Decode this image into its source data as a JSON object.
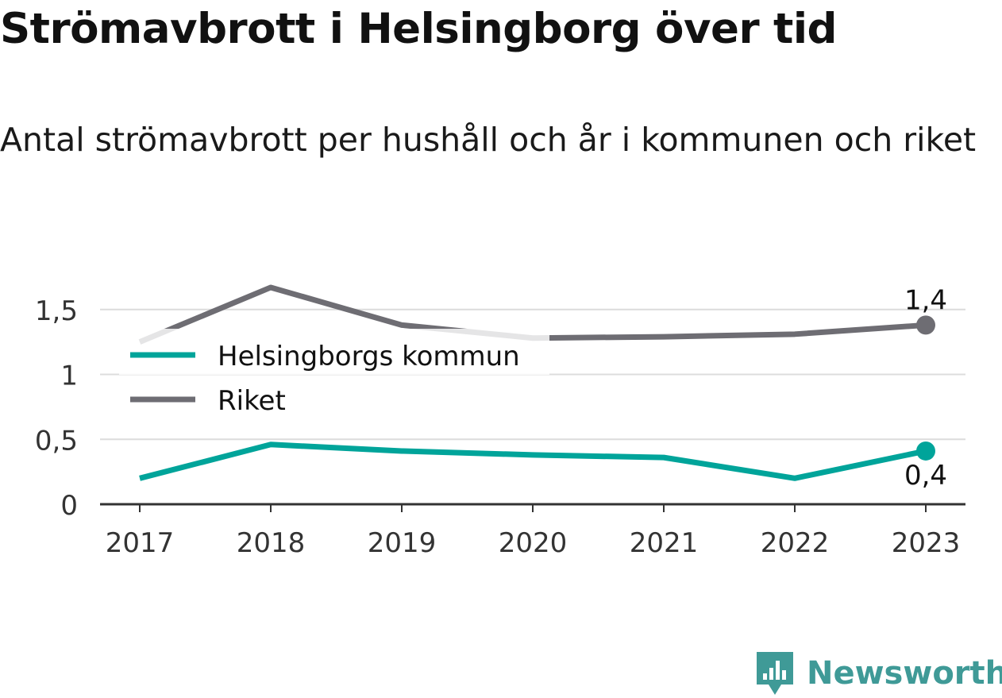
{
  "title": "Strömavbrott i Helsingborg över tid",
  "subtitle": "Antal strömavbrott per hushåll och år i kommunen och riket",
  "brand": "Newsworthy",
  "colors": {
    "helsingborg": "#00a49a",
    "riket": "#6e6d73",
    "grid": "#dcdcdc",
    "axis": "#333333",
    "brand": "#3f9a97"
  },
  "chart_data": {
    "type": "line",
    "title": "Strömavbrott i Helsingborg över tid",
    "subtitle": "Antal strömavbrott per hushåll och år i kommunen och riket",
    "x": [
      "2017",
      "2018",
      "2019",
      "2020",
      "2021",
      "2022",
      "2023"
    ],
    "ylim": [
      0,
      1.65
    ],
    "yticks": [
      0,
      0.5,
      1,
      1.5
    ],
    "ytick_labels": [
      "0",
      "0,5",
      "1",
      "1,5"
    ],
    "grid": true,
    "legend_position": "upper-left",
    "series": [
      {
        "name": "Helsingborgs kommun",
        "color": "#00a49a",
        "values": [
          0.2,
          0.46,
          0.41,
          0.38,
          0.36,
          0.2,
          0.41
        ],
        "end_label": "0,4",
        "end_label_position": "below"
      },
      {
        "name": "Riket",
        "color": "#6e6d73",
        "values": [
          1.25,
          1.67,
          1.38,
          1.28,
          1.29,
          1.31,
          1.38
        ],
        "end_label": "1,4",
        "end_label_position": "above"
      }
    ]
  }
}
